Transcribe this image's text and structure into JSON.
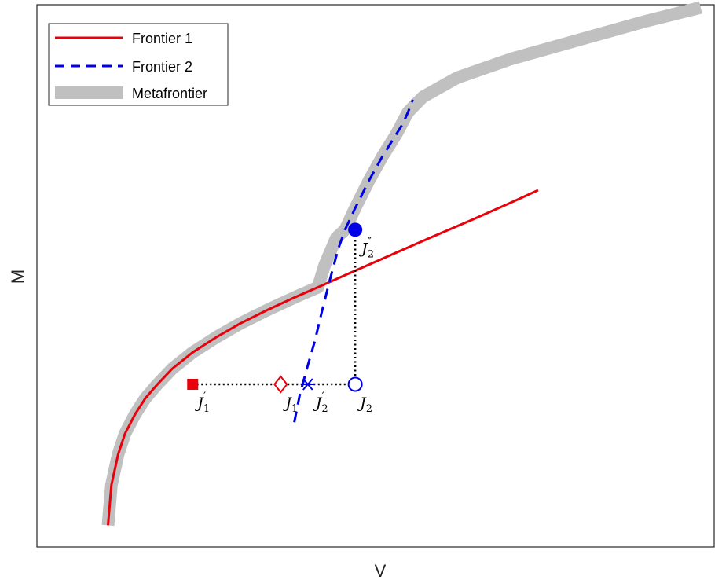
{
  "chart_data": {
    "type": "line",
    "title": "",
    "xlabel": "V",
    "ylabel": "M",
    "xlim": [
      0,
      100
    ],
    "ylim": [
      0,
      100
    ],
    "grid": false,
    "ticks": false,
    "legend": {
      "position": "top-left",
      "entries": [
        {
          "label": "Frontier 1",
          "color": "#e8000b",
          "style": "solid"
        },
        {
          "label": "Frontier 2",
          "color": "#0000e6",
          "style": "dashed"
        },
        {
          "label": "Metafrontier",
          "color": "#c0c0c0",
          "style": "thick"
        }
      ]
    },
    "series": [
      {
        "name": "Frontier 1",
        "color": "#e8000b",
        "x": [
          10.5,
          11.0,
          12.0,
          13.0,
          14.5,
          16.0,
          17.8,
          20.0,
          23.0,
          26.5,
          30.0,
          34.0,
          38.0,
          41.5,
          46.0,
          52.0,
          58.0,
          64.0,
          70.0,
          74.0
        ],
        "y": [
          4.0,
          11.4,
          17.1,
          20.9,
          24.5,
          27.4,
          30.0,
          32.9,
          35.9,
          38.7,
          41.2,
          43.7,
          46.0,
          47.9,
          50.4,
          53.7,
          57.0,
          60.2,
          63.5,
          65.8
        ]
      },
      {
        "name": "Frontier 2",
        "color": "#0000e6",
        "x": [
          38.0,
          38.8,
          40.0,
          41.0,
          42.0,
          43.2,
          44.5,
          45.5,
          47.0,
          49.0,
          51.0,
          53.0,
          54.0,
          54.8,
          55.5
        ],
        "y": [
          23.0,
          28.0,
          33.5,
          37.8,
          43.0,
          49.0,
          55.0,
          58.5,
          62.5,
          67.5,
          72.0,
          76.0,
          78.0,
          80.2,
          82.5
        ]
      },
      {
        "name": "Metafrontier",
        "color": "#c0c0c0",
        "x": [
          10.5,
          11.0,
          12.0,
          13.0,
          14.5,
          16.0,
          17.8,
          20.0,
          23.0,
          26.5,
          30.0,
          34.0,
          38.0,
          41.5,
          42.5,
          44.2,
          45.5,
          47.0,
          49.0,
          51.0,
          53.0,
          54.8,
          57.0,
          62.0,
          70.0,
          80.0,
          90.0,
          98.0
        ],
        "y": [
          4.0,
          11.4,
          17.1,
          20.9,
          24.5,
          27.4,
          30.0,
          32.9,
          35.9,
          38.7,
          41.2,
          43.7,
          46.0,
          47.9,
          52.0,
          57.0,
          58.5,
          62.5,
          67.5,
          72.0,
          76.0,
          80.2,
          83.0,
          86.5,
          90.0,
          93.5,
          97.0,
          99.5
        ]
      }
    ],
    "points": [
      {
        "label": "J",
        "sub": "1",
        "prime": "′",
        "x": 23.0,
        "y": 30.0,
        "marker": "square",
        "color": "#e8000b"
      },
      {
        "label": "J",
        "sub": "1",
        "prime": "",
        "x": 36.0,
        "y": 30.0,
        "marker": "diamond",
        "color": "#e8000b"
      },
      {
        "label": "J",
        "sub": "2",
        "prime": "′",
        "x": 40.0,
        "y": 30.0,
        "marker": "asterisk",
        "color": "#0000e6"
      },
      {
        "label": "J",
        "sub": "2",
        "prime": "",
        "x": 47.0,
        "y": 30.0,
        "marker": "circle",
        "color": "#0000e6"
      },
      {
        "label": "J",
        "sub": "2",
        "prime": "″",
        "x": 47.0,
        "y": 58.5,
        "marker": "filled-circle",
        "color": "#0000e6"
      }
    ],
    "guides": [
      {
        "from": [
          23.0,
          30.0
        ],
        "to": [
          47.0,
          30.0
        ],
        "style": "dotted"
      },
      {
        "from": [
          47.0,
          30.0
        ],
        "to": [
          47.0,
          58.5
        ],
        "style": "dotted"
      }
    ]
  }
}
